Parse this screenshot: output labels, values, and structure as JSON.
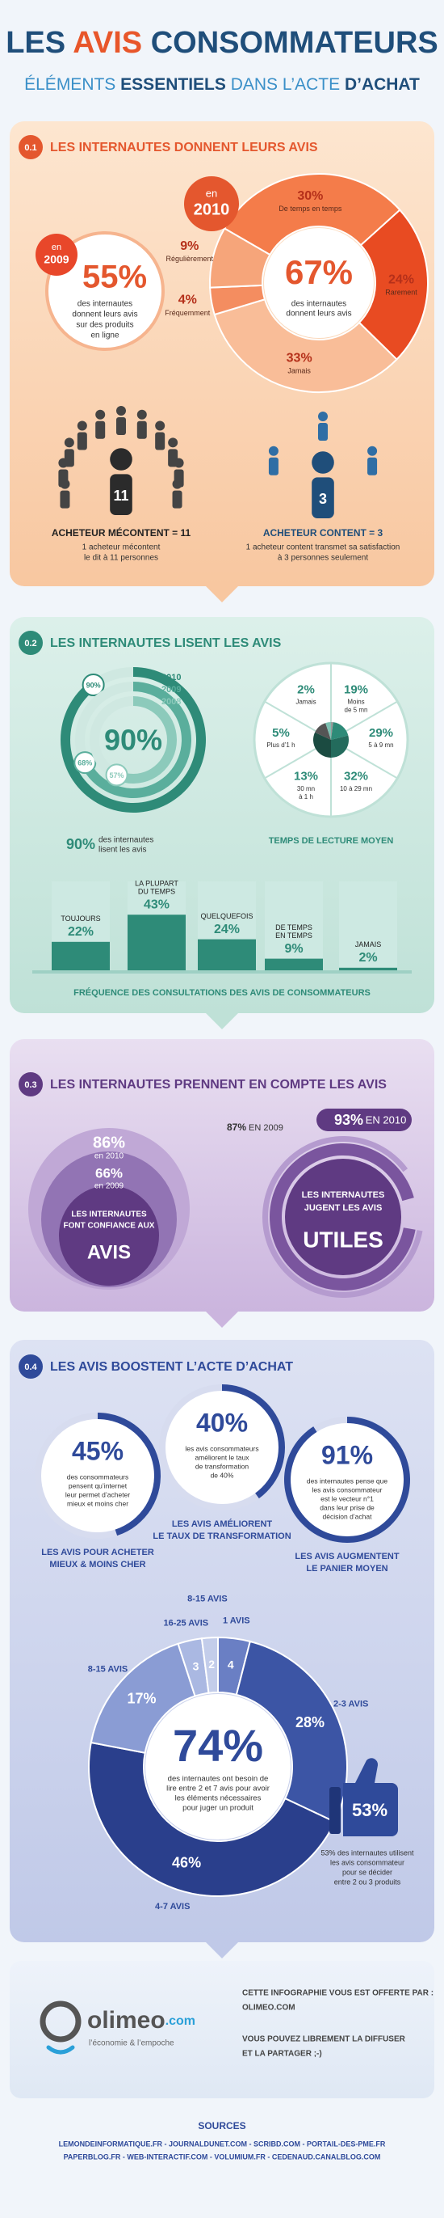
{
  "header": {
    "title": [
      "LES",
      "AVIS",
      "CONSOMMATEURS"
    ],
    "subtitle": [
      "ÉLÉMENTS",
      "ESSENTIELS",
      "DANS L’ACTE",
      "D’ACHAT"
    ]
  },
  "section_1": {
    "number": "0.1",
    "title": "LES INTERNAUTES DONNENT LEURS AVIS",
    "year_2009": {
      "year": [
        "en",
        "2009"
      ],
      "value": "55%",
      "text": [
        "des internautes",
        "donnent leurs avis",
        "sur des produits",
        "en ligne"
      ]
    },
    "year_2010": {
      "year": [
        "en",
        "2010"
      ],
      "value": "67%",
      "text": [
        "des internautes",
        "donnent leurs avis"
      ],
      "segments": [
        {
          "value": 30,
          "label": "30%",
          "name": "De temps en temps"
        },
        {
          "value": 24,
          "label": "24%",
          "name": "Rarement"
        },
        {
          "value": 33,
          "label": "33%",
          "name": "Jamais"
        },
        {
          "value": 4,
          "label": "4%",
          "name": "Fréquemment"
        },
        {
          "value": 9,
          "label": "9%",
          "name": "Régulièrement"
        }
      ]
    },
    "unhappy": {
      "count": "11",
      "label": "ACHETEUR MÉCONTENT = 11",
      "text": [
        "1 acheteur mécontent",
        "le dit à 11 personnes"
      ]
    },
    "happy": {
      "count": "3",
      "label": "ACHETEUR CONTENT = 3",
      "text": [
        "1 acheteur content transmet sa satisfaction",
        "à 3 personnes seulement"
      ]
    }
  },
  "section_2": {
    "number": "0.2",
    "title": "LES INTERNAUTES LISENT LES AVIS",
    "rings": [
      {
        "year": "2010",
        "value": 90,
        "label": "90%"
      },
      {
        "year": "2009",
        "value": 68,
        "label": "68%"
      },
      {
        "year": "2008",
        "value": 57,
        "label": "57%"
      }
    ],
    "rings_caption": [
      "des internautes",
      "lisent les avis"
    ],
    "reading": {
      "title": "TEMPS DE LECTURE MOYEN",
      "segments": [
        {
          "value": 2,
          "label": "2%",
          "name": [
            "Jamais"
          ]
        },
        {
          "value": 19,
          "label": "19%",
          "name": [
            "Moins",
            "de 5 mn"
          ]
        },
        {
          "value": 29,
          "label": "29%",
          "name": [
            "5 à 9 mn"
          ]
        },
        {
          "value": 32,
          "label": "32%",
          "name": [
            "10 à 29 mn"
          ]
        },
        {
          "value": 13,
          "label": "13%",
          "name": [
            "30 mn",
            "à 1 h"
          ]
        },
        {
          "value": 5,
          "label": "5%",
          "name": [
            "Plus d’1 h"
          ]
        }
      ]
    },
    "frequency": {
      "title": "FRÉQUENCE DES CONSULTATIONS DES AVIS DE CONSOMMATEURS",
      "bars": [
        {
          "name": [
            "TOUJOURS"
          ],
          "value": 22,
          "label": "22%"
        },
        {
          "name": [
            "LA PLUPART",
            "DU TEMPS"
          ],
          "value": 43,
          "label": "43%"
        },
        {
          "name": [
            "QUELQUEFOIS"
          ],
          "value": 24,
          "label": "24%"
        },
        {
          "name": [
            "DE TEMPS",
            "EN TEMPS"
          ],
          "value": 9,
          "label": "9%"
        },
        {
          "name": [
            "JAMAIS"
          ],
          "value": 2,
          "label": "2%"
        }
      ]
    }
  },
  "section_3": {
    "number": "0.3",
    "title": "LES INTERNAUTES PRENNENT EN COMPTE LES AVIS",
    "trust": {
      "items": [
        {
          "label": "86%",
          "year": "en 2010"
        },
        {
          "label": "66%",
          "year": "en 2009"
        }
      ],
      "text": [
        "LES INTERNAUTES",
        "FONT CONFIANCE AUX"
      ],
      "emphasis": "AVIS"
    },
    "useful": {
      "items": [
        {
          "value": 87,
          "label": "87%",
          "year": "EN 2009"
        },
        {
          "value": 93,
          "label": "93%",
          "year": "EN 2010"
        }
      ],
      "text": [
        "LES INTERNAUTES",
        "JUGENT LES AVIS"
      ],
      "emphasis": "UTILES"
    }
  },
  "section_4": {
    "number": "0.4",
    "title": "LES AVIS BOOSTENT L’ACTE D’ACHAT",
    "stats": [
      {
        "value": 45,
        "label": "45%",
        "text": [
          "des consommateurs",
          "pensent qu’internet",
          "leur permet d’acheter",
          "mieux et moins cher"
        ],
        "caption": [
          "LES AVIS POUR ACHETER",
          "MIEUX & MOINS CHER"
        ]
      },
      {
        "value": 40,
        "label": "40%",
        "text": [
          "les avis consommateurs",
          "améliorent le taux",
          "de transformation",
          "de 40%"
        ],
        "caption": [
          "LES AVIS AMÉLIORENT",
          "LE TAUX DE TRANSFORMATION"
        ]
      },
      {
        "value": 91,
        "label": "91%",
        "text": [
          "des internautes pense que",
          "les avis consommateur",
          "est le vecteur n°1",
          "dans leur prise de",
          "décision d’achat"
        ],
        "caption": [
          "LES AVIS AUGMENTENT",
          "LE PANIER MOYEN"
        ]
      }
    ],
    "reviews": {
      "value": "74%",
      "text": [
        "des internautes ont besoin de",
        "lire entre 2 et 7 avis pour avoir",
        "les éléments nécessaires",
        "pour juger un produit"
      ],
      "segments": [
        {
          "name": "1 AVIS",
          "value": 4,
          "label": "4"
        },
        {
          "name": "2-3 AVIS",
          "value": 28,
          "label": "28%"
        },
        {
          "name": "4-7 AVIS",
          "value": 46,
          "label": "46%"
        },
        {
          "name": "8-15 AVIS",
          "value": 17,
          "label": "17%"
        },
        {
          "name": "16-25 AVIS",
          "value": 3,
          "label": "3"
        },
        {
          "name": "8-15 AVIS",
          "value": 2,
          "label": "2"
        }
      ]
    },
    "thumb": {
      "value": "53%",
      "text": [
        "53% des internautes utilisent",
        "les avis consommateur",
        "pour se décider",
        "entre 2 ou 3 produits"
      ]
    }
  },
  "footer": {
    "brand": "olimeo",
    "domain": ".com",
    "tagline": "l’économie & l’empoche",
    "offer": [
      "CETTE INFOGRAPHIE VOUS EST OFFERTE PAR :",
      "OLIMEO.COM"
    ],
    "share": [
      "VOUS POUVEZ LIBREMENT LA DIFFUSER",
      "ET LA PARTAGER ;-)"
    ]
  },
  "sources": {
    "title": "SOURCES",
    "lines": [
      "LEMONDEINFORMATIQUE.FR - JOURNALDUNET.COM - SCRIBD.COM - PORTAIL-DES-PME.FR",
      "PAPERBLOG.FR - WEB-INTERACTIF.COM - VOLUMIUM.FR - CEDENAUD.CANALBLOG.COM"
    ]
  }
}
